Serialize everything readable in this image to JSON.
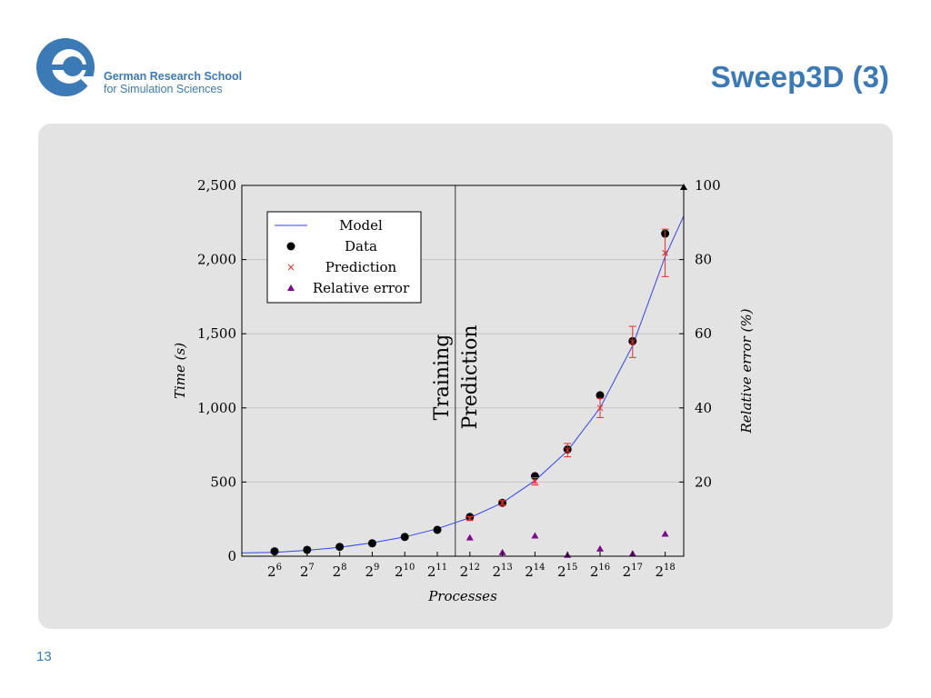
{
  "header": {
    "logo_line1": "German Research School",
    "logo_line2": "for Simulation Sciences",
    "title": "Sweep3D (3)"
  },
  "footer": {
    "slide_number": "13"
  },
  "colors": {
    "brand": "#3b7ab4",
    "panel": "#e3e3e3",
    "model": "#3344ee",
    "data": "#000000",
    "prediction": "#e0302a",
    "relative_error": "#7a0a8a"
  },
  "chart_data": {
    "type": "scatter",
    "xlabel": "Processes",
    "ylabel": "Time (s)",
    "y2label": "Relative error (%)",
    "x_scale": "log2",
    "x_ticks": [
      {
        "base": "2",
        "exp": "6"
      },
      {
        "base": "2",
        "exp": "7"
      },
      {
        "base": "2",
        "exp": "8"
      },
      {
        "base": "2",
        "exp": "9"
      },
      {
        "base": "2",
        "exp": "10"
      },
      {
        "base": "2",
        "exp": "11"
      },
      {
        "base": "2",
        "exp": "12"
      },
      {
        "base": "2",
        "exp": "13"
      },
      {
        "base": "2",
        "exp": "14"
      },
      {
        "base": "2",
        "exp": "15"
      },
      {
        "base": "2",
        "exp": "16"
      },
      {
        "base": "2",
        "exp": "17"
      },
      {
        "base": "2",
        "exp": "18"
      }
    ],
    "ylim": [
      0,
      2500
    ],
    "y_ticks": [
      "0",
      "500",
      "1,000",
      "1,500",
      "2,000",
      "2,500"
    ],
    "y2lim": [
      0,
      100
    ],
    "y2_ticks": [
      "20",
      "40",
      "60",
      "80",
      "100"
    ],
    "grid": true,
    "legend_position": "top-left",
    "split_x": 4096,
    "split_labels": {
      "left": "Training",
      "right": "Prediction"
    },
    "series": [
      {
        "name": "Model",
        "type": "line",
        "x": [
          32,
          64,
          128,
          256,
          512,
          1024,
          2048,
          4096,
          8192,
          16384,
          32768,
          65536,
          131072,
          262144,
          524288
        ],
        "y": [
          22,
          26,
          40,
          60,
          90,
          130,
          185,
          260,
          360,
          510,
          710,
          1000,
          1420,
          2020,
          2500
        ]
      },
      {
        "name": "Data",
        "type": "scatter",
        "x": [
          64,
          128,
          256,
          512,
          1024,
          2048,
          4096,
          8192,
          16384,
          32768,
          65536,
          131072,
          262144
        ],
        "y": [
          33,
          43,
          63,
          87,
          130,
          178,
          265,
          360,
          540,
          720,
          1085,
          1450,
          2175
        ]
      },
      {
        "name": "Prediction",
        "type": "scatter",
        "x": [
          4096,
          8192,
          16384,
          32768,
          65536,
          131072,
          262144
        ],
        "y": [
          255,
          360,
          505,
          715,
          1000,
          1445,
          2045
        ],
        "err": [
          12,
          18,
          25,
          45,
          65,
          105,
          160
        ]
      },
      {
        "name": "Relative error",
        "type": "scatter",
        "axis": "right",
        "x": [
          4096,
          8192,
          16384,
          32768,
          65536,
          131072,
          262144
        ],
        "y": [
          5,
          1,
          5.5,
          0.3,
          2,
          0.7,
          6
        ]
      }
    ]
  }
}
